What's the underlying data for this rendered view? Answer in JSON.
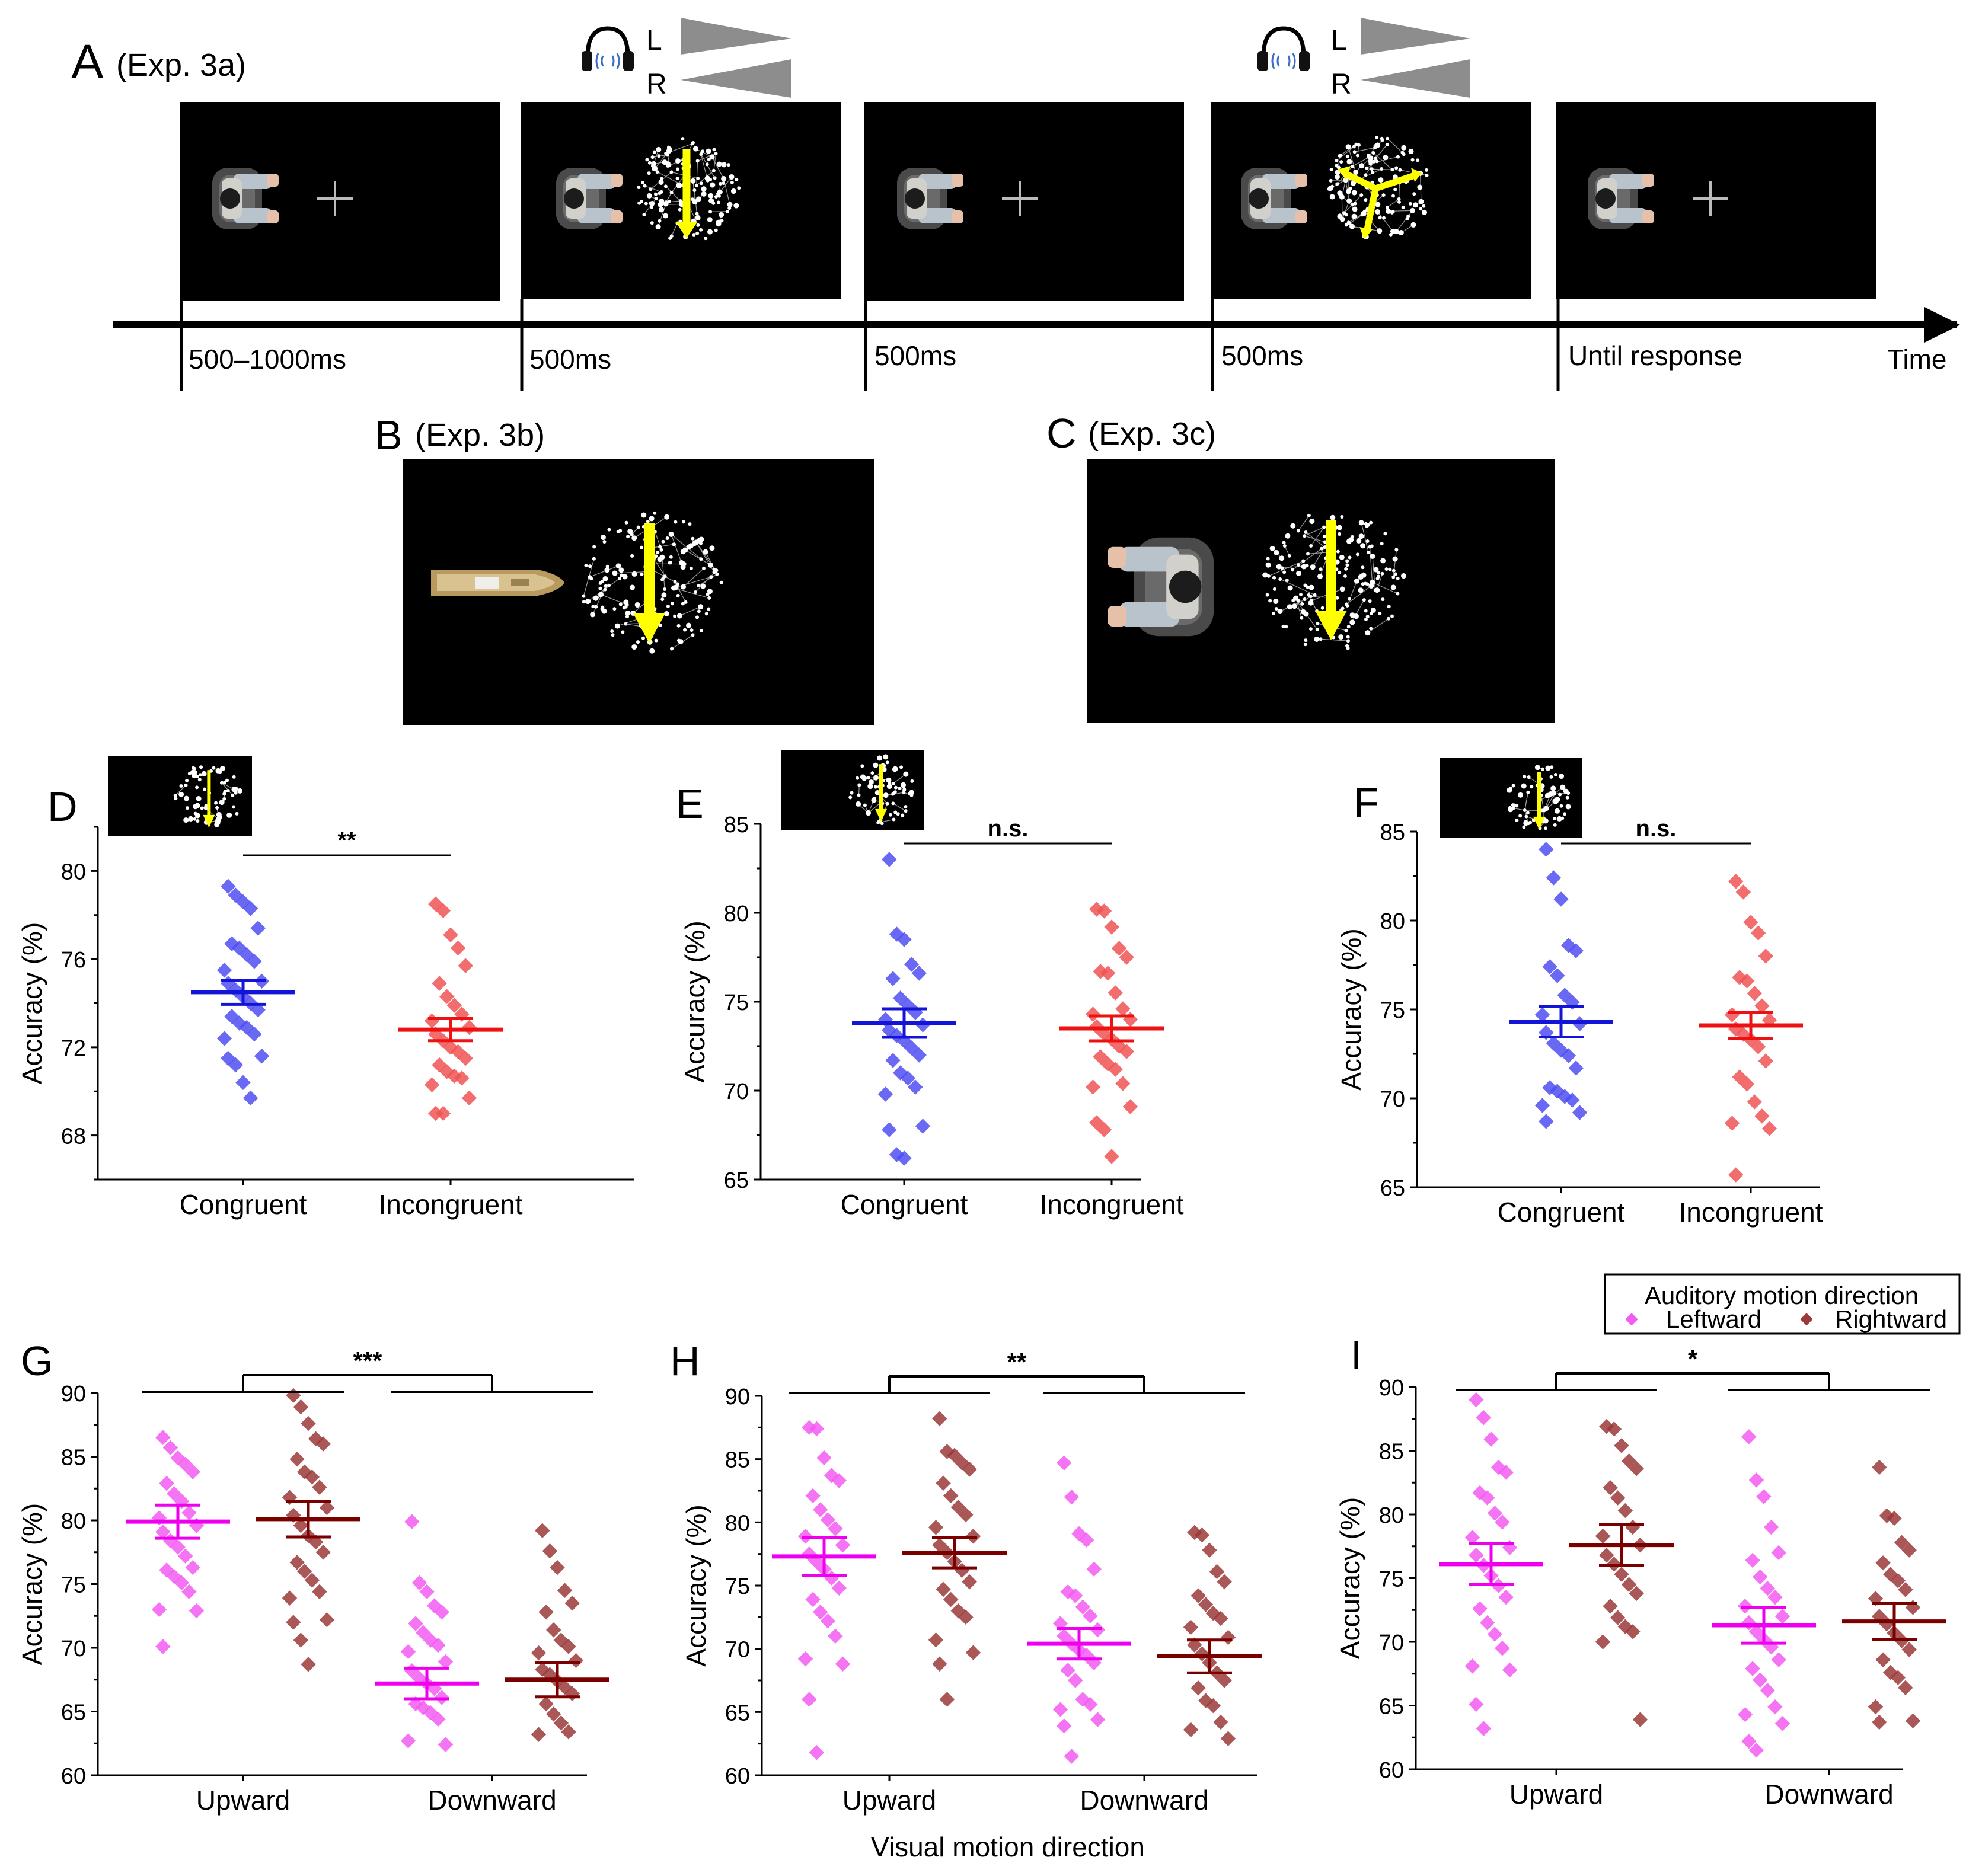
{
  "panel_a": {
    "letter": "A",
    "caption": "(Exp. 3a)",
    "headphone_labels": [
      "L",
      "R"
    ],
    "durations": [
      "500–1000ms",
      "500ms",
      "500ms",
      "500ms",
      "Until response"
    ],
    "time_label": "Time"
  },
  "panel_b": {
    "letter": "B",
    "caption": "(Exp. 3b)"
  },
  "panel_c": {
    "letter": "C",
    "caption": "(Exp. 3c)"
  },
  "colors": {
    "congruent": "#1414d8",
    "incongruent": "#ee1111",
    "congruent_points": "#4f4ff2",
    "incongruent_points": "#f05555",
    "leftward": "#ee00ee",
    "rightward": "#7a0000",
    "leftward_points": "#f25cf2",
    "rightward_points": "#9b3a3a",
    "arrow": "#ffff00"
  },
  "legend": {
    "title": "Auditory motion direction",
    "items": [
      "Leftward",
      "Rightward"
    ]
  },
  "shared_xlabel": "Visual motion direction",
  "chart_data": [
    {
      "id": "D",
      "type": "scatter",
      "letter": "D",
      "ylabel": "Accuracy (%)",
      "ylim": [
        66,
        82
      ],
      "yticks": [
        68,
        72,
        76,
        80
      ],
      "categories": [
        "Congruent",
        "Incongruent"
      ],
      "significance": "**",
      "series": [
        {
          "name": "Congruent",
          "mean": 74.5,
          "sem": 0.55,
          "points": [
            79.3,
            78.9,
            78.6,
            78.3,
            77.4,
            76.7,
            76.5,
            76.2,
            75.9,
            75.5,
            75.0,
            74.9,
            74.6,
            74.3,
            74.0,
            73.7,
            73.4,
            73.1,
            72.9,
            72.6,
            72.4,
            71.6,
            71.5,
            71.2,
            70.4,
            69.7
          ]
        },
        {
          "name": "Incongruent",
          "mean": 72.8,
          "sem": 0.5,
          "points": [
            78.5,
            78.2,
            77.1,
            76.5,
            75.7,
            74.9,
            74.3,
            73.9,
            73.5,
            73.2,
            72.9,
            72.6,
            72.3,
            72.0,
            71.8,
            71.5,
            71.2,
            70.9,
            70.7,
            70.6,
            70.3,
            69.7,
            69.0,
            69.0
          ]
        }
      ]
    },
    {
      "id": "E",
      "type": "scatter",
      "letter": "E",
      "ylabel": "Accuracy (%)",
      "ylim": [
        65,
        85
      ],
      "yticks": [
        65,
        70,
        75,
        80,
        85
      ],
      "categories": [
        "Congruent",
        "Incongruent"
      ],
      "significance": "n.s.",
      "series": [
        {
          "name": "Congruent",
          "mean": 73.8,
          "sem": 0.8,
          "points": [
            83.0,
            78.8,
            78.5,
            77.1,
            76.6,
            76.3,
            75.2,
            74.8,
            74.4,
            74.0,
            73.7,
            73.4,
            73.1,
            72.8,
            72.4,
            72.0,
            71.7,
            71.0,
            70.7,
            70.2,
            69.8,
            68.0,
            67.8,
            66.4,
            66.2
          ]
        },
        {
          "name": "Incongruent",
          "mean": 73.5,
          "sem": 0.7,
          "points": [
            80.2,
            80.1,
            79.2,
            78.0,
            77.5,
            76.7,
            76.6,
            75.5,
            74.6,
            74.3,
            74.0,
            73.6,
            73.2,
            72.9,
            72.5,
            72.2,
            71.9,
            71.5,
            71.2,
            70.4,
            70.2,
            69.1,
            68.2,
            67.8,
            66.3
          ]
        }
      ]
    },
    {
      "id": "F",
      "type": "scatter",
      "letter": "F",
      "ylabel": "Accuracy (%)",
      "ylim": [
        65,
        85
      ],
      "yticks": [
        65,
        70,
        75,
        80,
        85
      ],
      "categories": [
        "Congruent",
        "Incongruent"
      ],
      "significance": "n.s.",
      "series": [
        {
          "name": "Congruent",
          "mean": 74.3,
          "sem": 0.85,
          "points": [
            84.0,
            82.4,
            81.2,
            78.6,
            78.3,
            77.4,
            76.9,
            75.8,
            75.4,
            74.7,
            74.2,
            73.7,
            73.1,
            72.7,
            72.4,
            71.7,
            70.6,
            70.4,
            70.1,
            69.9,
            69.6,
            69.2,
            68.7
          ]
        },
        {
          "name": "Incongruent",
          "mean": 74.1,
          "sem": 0.75,
          "points": [
            82.2,
            81.6,
            79.9,
            79.3,
            78.0,
            76.8,
            76.6,
            75.9,
            75.2,
            74.7,
            74.4,
            73.9,
            73.6,
            73.3,
            72.9,
            72.1,
            71.2,
            70.8,
            69.8,
            69.0,
            68.6,
            68.3,
            65.7
          ]
        }
      ]
    },
    {
      "id": "G",
      "type": "scatter",
      "letter": "G",
      "ylabel": "Accuracy (%)",
      "ylim": [
        60,
        90
      ],
      "yticks": [
        60,
        65,
        70,
        75,
        80,
        85,
        90
      ],
      "categories": [
        "Upward",
        "Downward"
      ],
      "series_names": [
        "Leftward",
        "Rightward"
      ],
      "significance": "***",
      "groups": [
        {
          "name": "Upward",
          "series": [
            {
              "name": "Leftward",
              "mean": 79.9,
              "sem": 1.3,
              "points": [
                86.5,
                85.7,
                84.9,
                84.4,
                83.8,
                82.9,
                82.1,
                81.5,
                80.6,
                80.2,
                79.6,
                79.1,
                78.4,
                77.9,
                77.2,
                76.3,
                76.1,
                75.6,
                75.1,
                74.4,
                73.0,
                72.9,
                70.1
              ]
            },
            {
              "name": "Rightward",
              "mean": 80.1,
              "sem": 1.4,
              "points": [
                89.8,
                88.9,
                87.6,
                86.4,
                86.0,
                84.8,
                83.8,
                83.4,
                82.6,
                81.8,
                81.0,
                80.4,
                79.6,
                78.8,
                78.3,
                77.5,
                76.7,
                76.0,
                75.3,
                74.4,
                73.9,
                72.2,
                72.0,
                70.6,
                68.7
              ]
            }
          ]
        },
        {
          "name": "Downward",
          "series": [
            {
              "name": "Leftward",
              "mean": 67.2,
              "sem": 1.2,
              "points": [
                79.9,
                75.1,
                74.4,
                73.3,
                72.8,
                71.9,
                71.2,
                70.6,
                70.2,
                69.7,
                68.9,
                68.2,
                67.6,
                67.2,
                66.8,
                66.1,
                65.6,
                65.3,
                64.9,
                64.4,
                62.7,
                62.4
              ]
            },
            {
              "name": "Rightward",
              "mean": 67.5,
              "sem": 1.35,
              "points": [
                79.2,
                77.6,
                76.3,
                74.5,
                73.5,
                72.8,
                71.4,
                70.6,
                70.1,
                69.6,
                69.0,
                68.3,
                67.9,
                67.4,
                66.9,
                66.4,
                65.6,
                64.8,
                64.1,
                63.4,
                63.2
              ]
            }
          ]
        }
      ]
    },
    {
      "id": "H",
      "type": "scatter",
      "letter": "H",
      "ylabel": "Accuracy (%)",
      "ylim": [
        60,
        90
      ],
      "yticks": [
        60,
        65,
        70,
        75,
        80,
        85,
        90
      ],
      "categories": [
        "Upward",
        "Downward"
      ],
      "series_names": [
        "Leftward",
        "Rightward"
      ],
      "significance": "**",
      "groups": [
        {
          "name": "Upward",
          "series": [
            {
              "name": "Leftward",
              "mean": 77.3,
              "sem": 1.5,
              "points": [
                87.5,
                87.4,
                85.1,
                83.7,
                83.3,
                82.1,
                81.0,
                80.2,
                79.5,
                78.9,
                78.2,
                77.5,
                76.9,
                76.3,
                75.6,
                74.8,
                73.9,
                72.9,
                72.2,
                71.0,
                69.2,
                68.8,
                66.0,
                61.8
              ]
            },
            {
              "name": "Rightward",
              "mean": 77.6,
              "sem": 1.2,
              "points": [
                88.2,
                85.6,
                85.3,
                84.7,
                84.2,
                83.1,
                82.1,
                81.2,
                80.6,
                79.6,
                78.9,
                78.2,
                77.6,
                76.9,
                76.2,
                75.3,
                74.7,
                73.9,
                73.0,
                72.5,
                70.7,
                69.7,
                68.8,
                66.0
              ]
            }
          ]
        },
        {
          "name": "Downward",
          "series": [
            {
              "name": "Leftward",
              "mean": 70.4,
              "sem": 1.2,
              "points": [
                84.7,
                82.0,
                79.1,
                78.6,
                76.3,
                74.5,
                74.2,
                73.3,
                72.6,
                72.0,
                71.5,
                71.0,
                70.4,
                69.9,
                69.5,
                68.9,
                68.3,
                67.5,
                66.0,
                65.6,
                65.2,
                64.4,
                63.9,
                61.5
              ]
            },
            {
              "name": "Rightward",
              "mean": 69.4,
              "sem": 1.3,
              "points": [
                79.2,
                79.0,
                77.8,
                76.1,
                75.3,
                74.2,
                73.5,
                72.8,
                72.4,
                71.7,
                70.9,
                70.3,
                69.6,
                68.9,
                68.1,
                67.5,
                66.9,
                65.9,
                65.5,
                64.2,
                63.6,
                62.9
              ]
            }
          ]
        }
      ]
    },
    {
      "id": "I",
      "type": "scatter",
      "letter": "I",
      "ylabel": "Accuracy (%)",
      "ylim": [
        60,
        90
      ],
      "yticks": [
        60,
        65,
        70,
        75,
        80,
        85,
        90
      ],
      "categories": [
        "Upward",
        "Downward"
      ],
      "series_names": [
        "Leftward",
        "Rightward"
      ],
      "significance": "*",
      "groups": [
        {
          "name": "Upward",
          "series": [
            {
              "name": "Leftward",
              "mean": 76.1,
              "sem": 1.6,
              "points": [
                89.0,
                87.6,
                85.9,
                83.7,
                83.3,
                81.7,
                81.3,
                80.1,
                79.4,
                78.2,
                77.4,
                76.8,
                76.0,
                75.2,
                74.4,
                73.5,
                72.6,
                71.5,
                70.6,
                69.5,
                68.1,
                67.8,
                65.1,
                63.2
              ]
            },
            {
              "name": "Rightward",
              "mean": 77.6,
              "sem": 1.6,
              "points": [
                86.9,
                86.7,
                85.4,
                84.2,
                83.6,
                82.1,
                81.3,
                80.3,
                79.0,
                78.3,
                77.6,
                76.8,
                76.1,
                75.3,
                74.5,
                73.8,
                72.8,
                71.9,
                71.2,
                70.8,
                70.0,
                63.9
              ]
            }
          ]
        },
        {
          "name": "Downward",
          "series": [
            {
              "name": "Leftward",
              "mean": 71.3,
              "sem": 1.4,
              "points": [
                86.1,
                82.7,
                81.4,
                79.0,
                77.0,
                76.4,
                75.1,
                74.2,
                73.5,
                72.8,
                72.0,
                71.5,
                70.8,
                70.2,
                69.6,
                68.6,
                67.9,
                67.0,
                66.2,
                64.9,
                64.3,
                63.6,
                62.2,
                61.5
              ]
            },
            {
              "name": "Rightward",
              "mean": 71.6,
              "sem": 1.4,
              "points": [
                83.7,
                79.9,
                79.7,
                77.8,
                77.2,
                76.2,
                75.3,
                74.8,
                74.1,
                73.4,
                72.7,
                72.0,
                71.4,
                70.7,
                70.1,
                69.4,
                68.6,
                67.6,
                67.2,
                66.4,
                64.9,
                63.8,
                63.7
              ]
            }
          ]
        }
      ]
    }
  ]
}
